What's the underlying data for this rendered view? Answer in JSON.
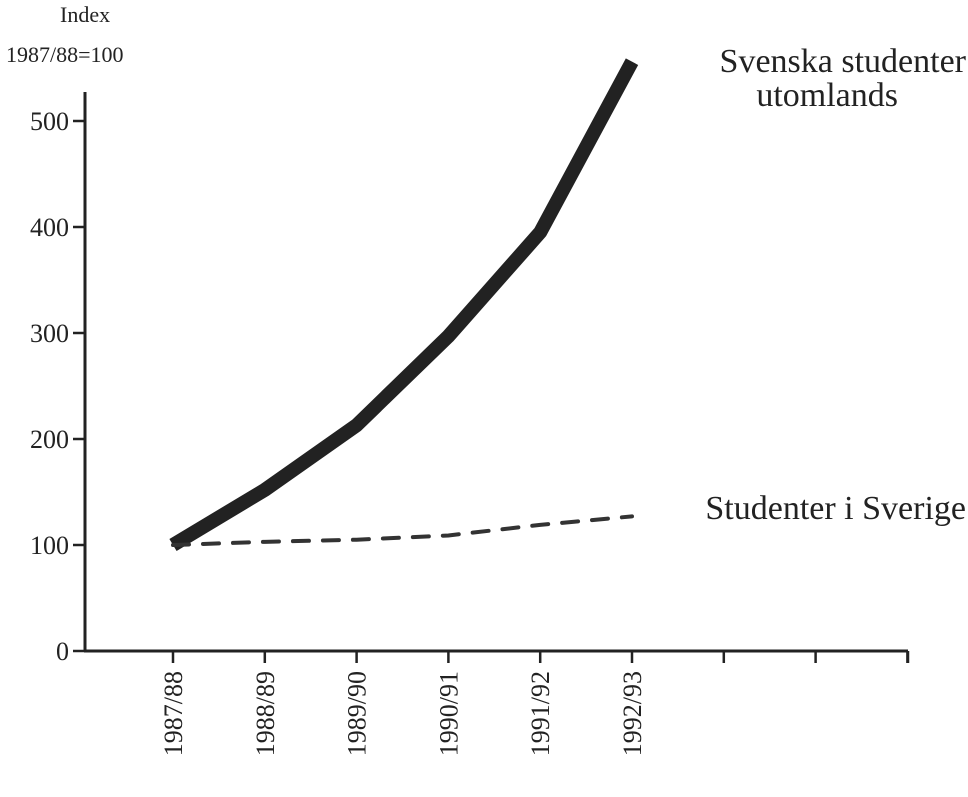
{
  "chart_data": {
    "type": "line",
    "title": "",
    "ylabel_line1": "Index",
    "ylabel_line2": "1987/88=100",
    "xlabel": "",
    "categories": [
      "1987/88",
      "1988/89",
      "1989/90",
      "1990/91",
      "1991/92",
      "1992/93"
    ],
    "extra_ticks": 3,
    "ylim": [
      0,
      500
    ],
    "yticks": [
      0,
      100,
      200,
      300,
      400,
      500
    ],
    "grid": false,
    "series": [
      {
        "name": "Svenska studenter utomlands",
        "label_lines": [
          "Svenska studenter",
          "utomlands"
        ],
        "style": "solid-thick",
        "color": "#222222",
        "values": [
          100,
          152,
          213,
          297,
          395,
          556
        ]
      },
      {
        "name": "Studenter i Sverige",
        "label_lines": [
          "Studenter i Sverige"
        ],
        "style": "dashed",
        "color": "#333333",
        "values": [
          100,
          103,
          105,
          109,
          119,
          127
        ]
      }
    ]
  }
}
